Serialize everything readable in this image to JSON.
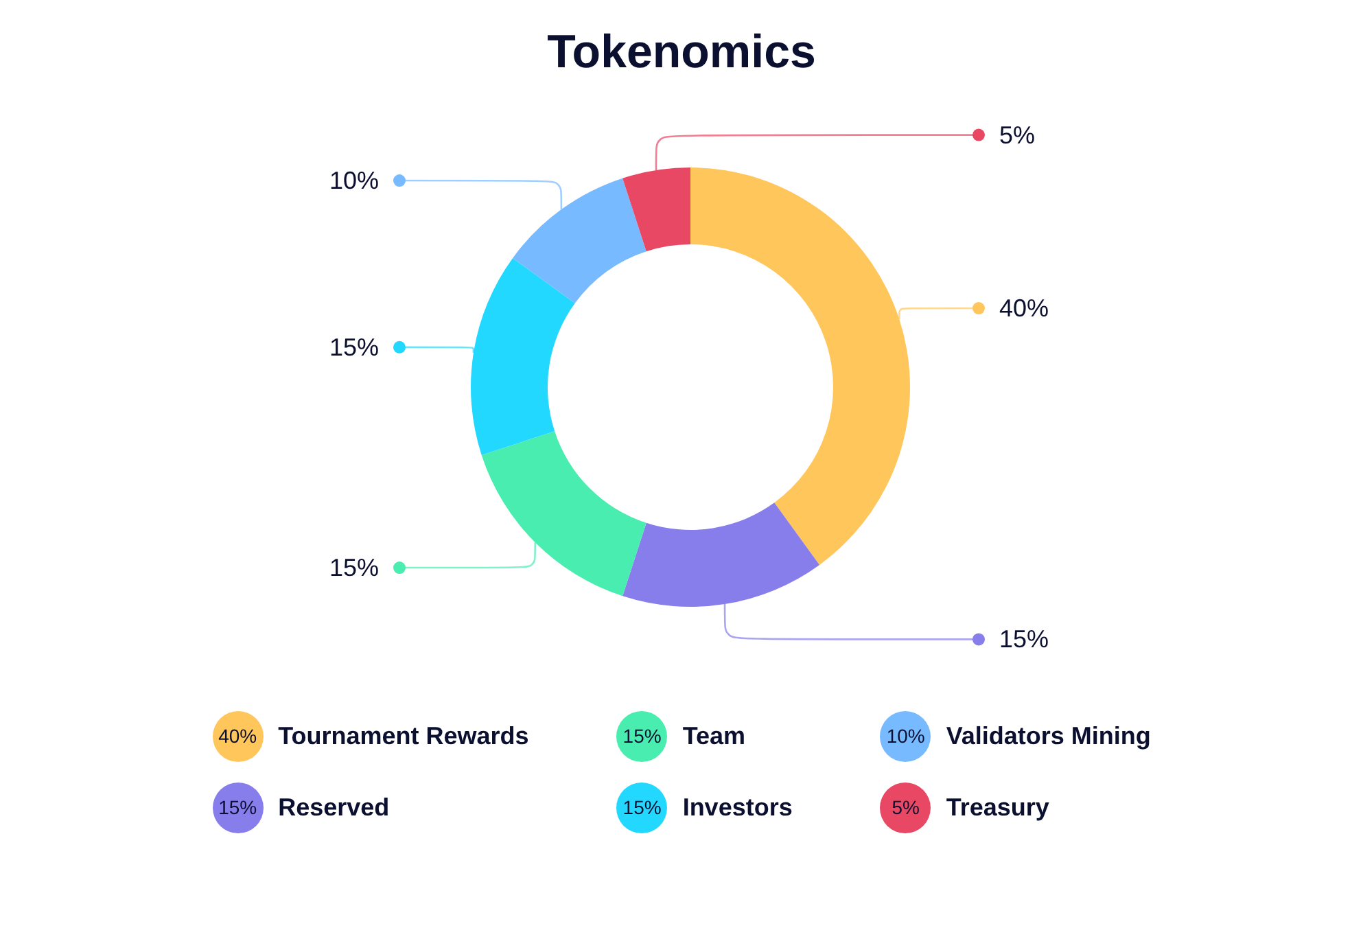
{
  "chart_data": {
    "type": "donut",
    "title": "Tokenomics",
    "categories": [
      "Tournament Rewards",
      "Reserved",
      "Team",
      "Investors",
      "Validators Mining",
      "Treasury"
    ],
    "values": [
      40,
      15,
      15,
      15,
      10,
      5
    ],
    "colors": [
      "#ffc65c",
      "#877deb",
      "#4aedb0",
      "#22d8ff",
      "#78baff",
      "#e84864"
    ],
    "value_labels": [
      "40%",
      "15%",
      "15%",
      "15%",
      "10%",
      "5%"
    ],
    "legend": "bottom"
  }
}
